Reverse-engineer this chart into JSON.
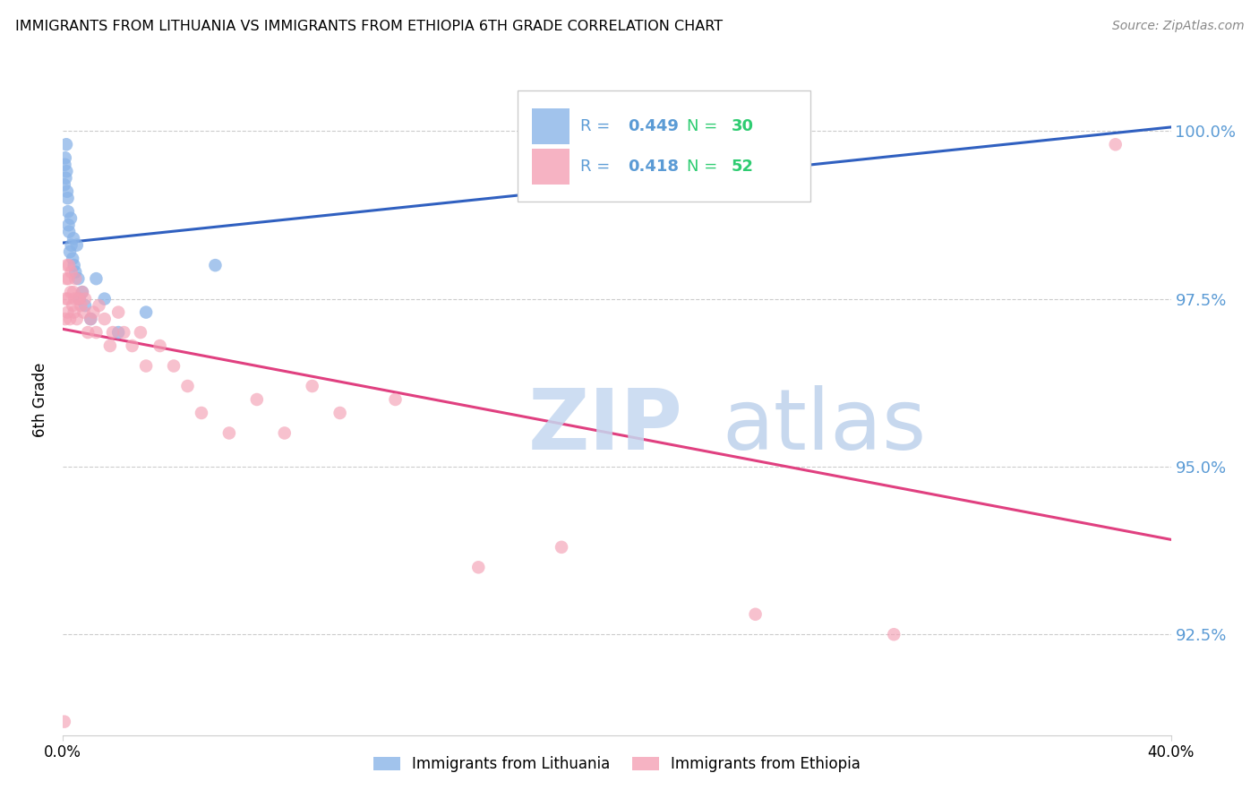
{
  "title": "IMMIGRANTS FROM LITHUANIA VS IMMIGRANTS FROM ETHIOPIA 6TH GRADE CORRELATION CHART",
  "source": "Source: ZipAtlas.com",
  "ylabel": "6th Grade",
  "xmin": 0.0,
  "xmax": 40.0,
  "ymin": 91.0,
  "ymax": 101.0,
  "yticks": [
    92.5,
    95.0,
    97.5,
    100.0
  ],
  "ytick_labels": [
    "92.5%",
    "95.0%",
    "97.5%",
    "100.0%"
  ],
  "color_lithuania": "#8ab4e8",
  "color_ethiopia": "#f4a0b5",
  "color_trend_lithuania": "#3060c0",
  "color_trend_ethiopia": "#e04080",
  "R_lithuania": 0.449,
  "N_lithuania": 30,
  "R_ethiopia": 0.418,
  "N_ethiopia": 52,
  "watermark_zip": "ZIP",
  "watermark_atlas": "atlas",
  "watermark_color_zip": "#d0dff5",
  "watermark_color_atlas": "#b8cce8",
  "lithuania_x": [
    0.05,
    0.07,
    0.08,
    0.1,
    0.12,
    0.13,
    0.15,
    0.17,
    0.18,
    0.2,
    0.22,
    0.25,
    0.28,
    0.3,
    0.35,
    0.38,
    0.4,
    0.45,
    0.5,
    0.55,
    0.6,
    0.7,
    0.8,
    1.0,
    1.2,
    1.5,
    2.0,
    3.0,
    5.5,
    17.5
  ],
  "lithuania_y": [
    99.2,
    99.5,
    99.6,
    99.3,
    99.8,
    99.4,
    99.1,
    99.0,
    98.8,
    98.6,
    98.5,
    98.2,
    98.7,
    98.3,
    98.1,
    98.4,
    98.0,
    97.9,
    98.3,
    97.8,
    97.5,
    97.6,
    97.4,
    97.2,
    97.8,
    97.5,
    97.0,
    97.3,
    98.0,
    99.9
  ],
  "ethiopia_x": [
    0.05,
    0.08,
    0.1,
    0.12,
    0.15,
    0.17,
    0.18,
    0.2,
    0.22,
    0.25,
    0.28,
    0.3,
    0.35,
    0.38,
    0.4,
    0.42,
    0.45,
    0.5,
    0.55,
    0.6,
    0.65,
    0.7,
    0.75,
    0.8,
    0.9,
    1.0,
    1.1,
    1.2,
    1.3,
    1.5,
    1.7,
    1.8,
    2.0,
    2.2,
    2.5,
    2.8,
    3.0,
    3.5,
    4.0,
    4.5,
    5.0,
    6.0,
    7.0,
    8.0,
    9.0,
    10.0,
    12.0,
    15.0,
    18.0,
    25.0,
    30.0,
    38.0
  ],
  "ethiopia_y": [
    91.2,
    97.2,
    97.5,
    97.8,
    98.0,
    97.3,
    97.5,
    97.8,
    98.0,
    97.2,
    97.6,
    97.9,
    97.4,
    97.6,
    97.3,
    97.5,
    97.8,
    97.2,
    97.5,
    97.5,
    97.4,
    97.6,
    97.3,
    97.5,
    97.0,
    97.2,
    97.3,
    97.0,
    97.4,
    97.2,
    96.8,
    97.0,
    97.3,
    97.0,
    96.8,
    97.0,
    96.5,
    96.8,
    96.5,
    96.2,
    95.8,
    95.5,
    96.0,
    95.5,
    96.2,
    95.8,
    96.0,
    93.5,
    93.8,
    92.8,
    92.5,
    99.8
  ]
}
